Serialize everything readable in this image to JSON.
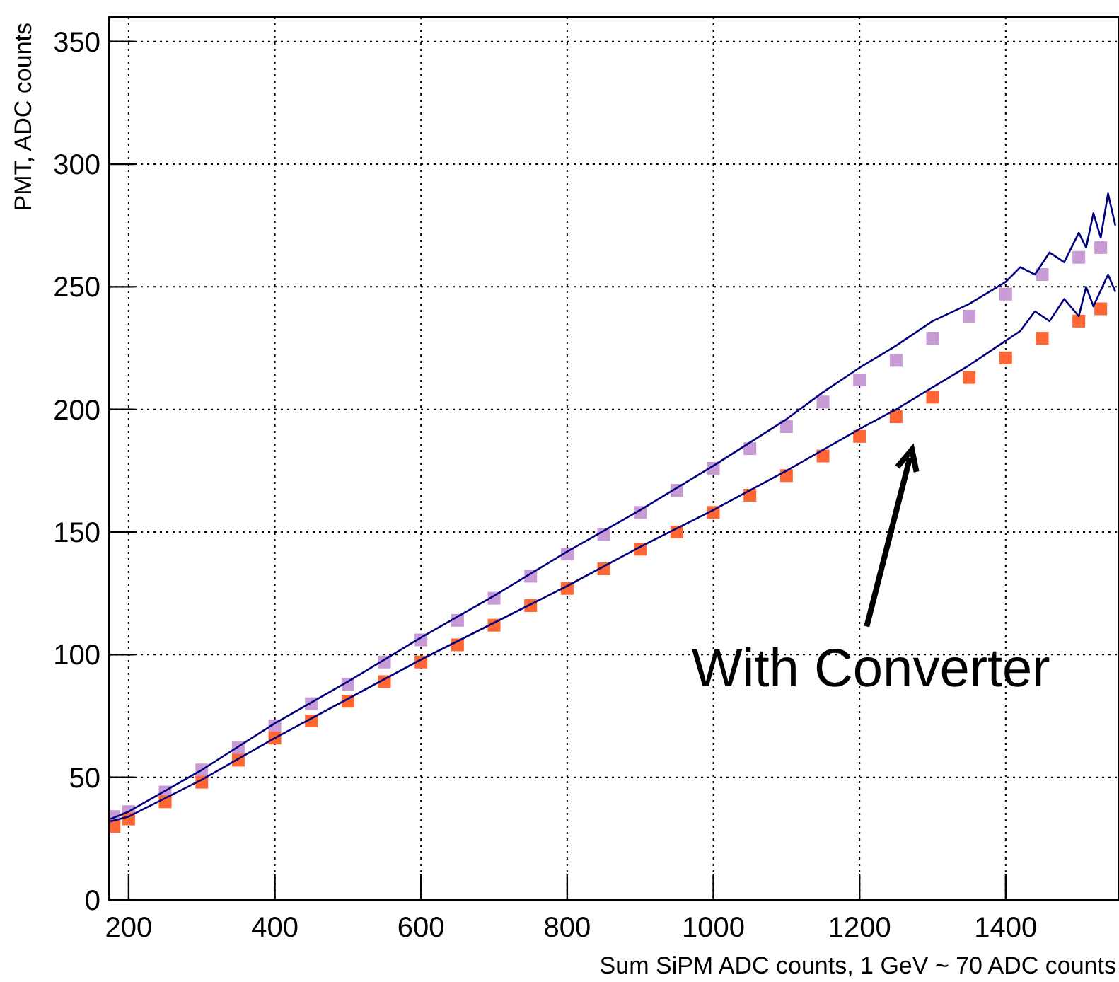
{
  "chart_data": {
    "type": "line",
    "xlabel": "Sum SiPM ADC counts, 1 GeV ~ 70 ADC counts",
    "ylabel": "PMT, ADC counts",
    "xlim": [
      173,
      1555
    ],
    "ylim": [
      0,
      360
    ],
    "xticks": [
      200,
      400,
      600,
      800,
      1000,
      1200,
      1400
    ],
    "yticks": [
      0,
      50,
      100,
      150,
      200,
      250,
      300,
      350
    ],
    "grid": true,
    "annotations": [
      "With Converter"
    ],
    "series": [
      {
        "color": "#00007f",
        "x": [
          175,
          200,
          300,
          400,
          500,
          600,
          700,
          800,
          900,
          1000,
          1100,
          1150,
          1200,
          1250,
          1300,
          1350,
          1400,
          1420,
          1440,
          1460,
          1480,
          1500,
          1510,
          1520,
          1530,
          1540,
          1550
        ],
        "values": [
          33,
          36,
          53,
          72,
          89,
          107,
          124,
          142,
          159,
          177,
          196,
          207,
          217,
          226,
          236,
          243,
          252,
          258,
          255,
          264,
          260,
          272,
          266,
          280,
          270,
          288,
          275
        ]
      },
      {
        "color": "#00007f",
        "x": [
          175,
          200,
          300,
          400,
          500,
          600,
          700,
          800,
          900,
          1000,
          1100,
          1200,
          1250,
          1300,
          1350,
          1400,
          1420,
          1440,
          1460,
          1480,
          1500,
          1510,
          1520,
          1540,
          1550
        ],
        "values": [
          32,
          34,
          49,
          66,
          82,
          98,
          113,
          128,
          144,
          159,
          175,
          192,
          200,
          209,
          218,
          228,
          232,
          240,
          236,
          245,
          238,
          250,
          242,
          255,
          248
        ]
      },
      {
        "type": "scatter",
        "marker": "square",
        "color": "#c89bd6",
        "x": [
          180,
          200,
          250,
          300,
          350,
          400,
          450,
          500,
          550,
          600,
          650,
          700,
          750,
          800,
          850,
          900,
          950,
          1000,
          1050,
          1100,
          1150,
          1200,
          1250,
          1300,
          1350,
          1400,
          1450,
          1500,
          1530
        ],
        "values": [
          34,
          36,
          44,
          53,
          62,
          71,
          80,
          88,
          97,
          106,
          114,
          123,
          132,
          141,
          149,
          158,
          167,
          176,
          184,
          193,
          203,
          212,
          220,
          229,
          238,
          247,
          255,
          262,
          266
        ]
      },
      {
        "type": "scatter",
        "marker": "square",
        "color": "#ff6633",
        "x": [
          180,
          200,
          250,
          300,
          350,
          400,
          450,
          500,
          550,
          600,
          650,
          700,
          750,
          800,
          850,
          900,
          950,
          1000,
          1050,
          1100,
          1150,
          1200,
          1250,
          1300,
          1350,
          1400,
          1450,
          1500,
          1530
        ],
        "values": [
          30,
          33,
          40,
          48,
          57,
          66,
          73,
          81,
          89,
          97,
          104,
          112,
          120,
          127,
          135,
          143,
          150,
          158,
          165,
          173,
          181,
          189,
          197,
          205,
          213,
          221,
          229,
          236,
          241
        ]
      }
    ]
  }
}
